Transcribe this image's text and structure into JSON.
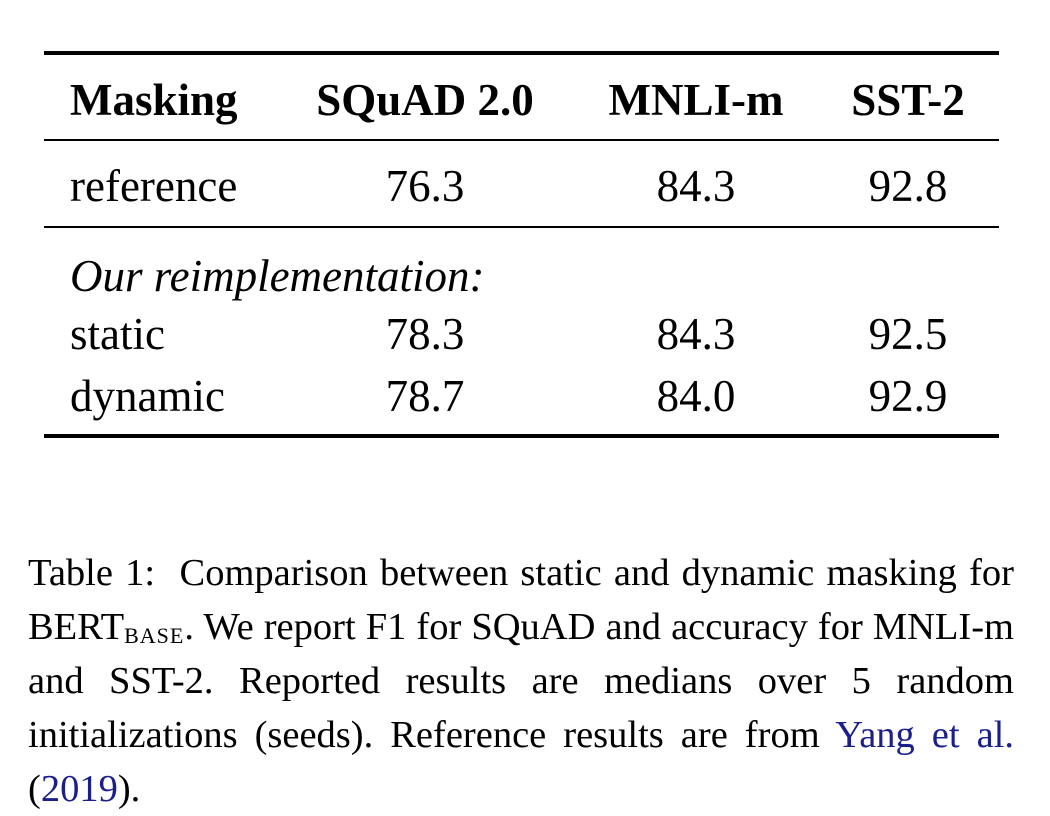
{
  "table": {
    "headers": [
      "Masking",
      "SQuAD 2.0",
      "MNLI-m",
      "SST-2"
    ],
    "reference_row": {
      "label": "reference",
      "values": [
        "76.3",
        "84.3",
        "92.8"
      ]
    },
    "section_label": "Our reimplementation:",
    "rows": [
      {
        "label": "static",
        "values": [
          "78.3",
          "84.3",
          "92.5"
        ]
      },
      {
        "label": "dynamic",
        "values": [
          "78.7",
          "84.0",
          "92.9"
        ]
      }
    ]
  },
  "caption": {
    "label": "Table 1:",
    "text_1": "Comparison between static and dynamic masking for BERT",
    "subscript": "BASE",
    "text_2": ". We report F1 for SQuAD and accuracy for MNLI-m and SST-2. Reported results are medians over 5 random initializations (seeds). Reference results are from",
    "citation_author": "Yang et al.",
    "citation_open": "(",
    "citation_year": "2019",
    "citation_close": ").",
    "citation_color": "#1a1f8c"
  }
}
